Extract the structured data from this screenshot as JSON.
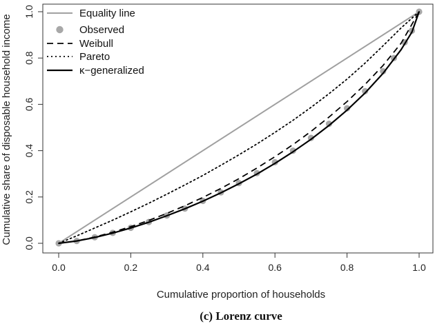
{
  "chart_data": {
    "type": "line",
    "title": "",
    "caption": "(c) Lorenz curve",
    "xlabel": "Cumulative proportion of households",
    "ylabel": "Cumulative share of disposable household income",
    "xlim": [
      0,
      1
    ],
    "ylim": [
      0,
      1
    ],
    "xticks": [
      "0.0",
      "0.2",
      "0.4",
      "0.6",
      "0.8",
      "1.0"
    ],
    "yticks": [
      "0.0",
      "0.2",
      "0.4",
      "0.6",
      "0.8",
      "1.0"
    ],
    "grid": false,
    "legend_position": "top-left",
    "series": [
      {
        "name": "Equality line",
        "style": "solid",
        "color": "#a0a0a0",
        "x": [
          0,
          1
        ],
        "y": [
          0,
          1
        ]
      },
      {
        "name": "Observed",
        "style": "points",
        "color": "#a8a8a8",
        "x": [
          0,
          0.05,
          0.1,
          0.15,
          0.2,
          0.25,
          0.3,
          0.35,
          0.4,
          0.45,
          0.5,
          0.55,
          0.6,
          0.65,
          0.7,
          0.75,
          0.8,
          0.85,
          0.9,
          0.93,
          0.96,
          0.98,
          1.0
        ],
        "y": [
          0,
          0.01,
          0.026,
          0.045,
          0.067,
          0.092,
          0.12,
          0.15,
          0.183,
          0.22,
          0.26,
          0.303,
          0.35,
          0.4,
          0.455,
          0.516,
          0.583,
          0.657,
          0.743,
          0.8,
          0.868,
          0.918,
          1.0
        ]
      },
      {
        "name": "Weibull",
        "style": "dashed",
        "color": "#000000",
        "x": [
          0,
          0.05,
          0.1,
          0.15,
          0.2,
          0.25,
          0.3,
          0.35,
          0.4,
          0.45,
          0.5,
          0.55,
          0.6,
          0.65,
          0.7,
          0.75,
          0.8,
          0.85,
          0.9,
          0.95,
          1.0
        ],
        "y": [
          0,
          0.01,
          0.027,
          0.048,
          0.072,
          0.099,
          0.129,
          0.162,
          0.198,
          0.237,
          0.279,
          0.325,
          0.374,
          0.426,
          0.483,
          0.545,
          0.612,
          0.686,
          0.768,
          0.864,
          1.0
        ]
      },
      {
        "name": "Pareto",
        "style": "dotted",
        "color": "#000000",
        "x": [
          0,
          0.05,
          0.1,
          0.15,
          0.2,
          0.25,
          0.3,
          0.35,
          0.4,
          0.45,
          0.5,
          0.55,
          0.6,
          0.65,
          0.7,
          0.75,
          0.8,
          0.85,
          0.9,
          0.95,
          1.0
        ],
        "y": [
          0,
          0.032,
          0.066,
          0.1,
          0.136,
          0.173,
          0.212,
          0.252,
          0.293,
          0.337,
          0.382,
          0.429,
          0.479,
          0.531,
          0.587,
          0.646,
          0.709,
          0.778,
          0.853,
          0.93,
          1.0
        ]
      },
      {
        "name": "κ−generalized",
        "style": "solid",
        "color": "#000000",
        "x": [
          0,
          0.05,
          0.1,
          0.15,
          0.2,
          0.25,
          0.3,
          0.35,
          0.4,
          0.45,
          0.5,
          0.55,
          0.6,
          0.65,
          0.7,
          0.75,
          0.8,
          0.85,
          0.9,
          0.95,
          0.98,
          1.0
        ],
        "y": [
          0,
          0.01,
          0.025,
          0.044,
          0.066,
          0.091,
          0.119,
          0.149,
          0.182,
          0.218,
          0.257,
          0.299,
          0.345,
          0.395,
          0.449,
          0.509,
          0.575,
          0.649,
          0.734,
          0.836,
          0.912,
          1.0
        ]
      }
    ]
  }
}
